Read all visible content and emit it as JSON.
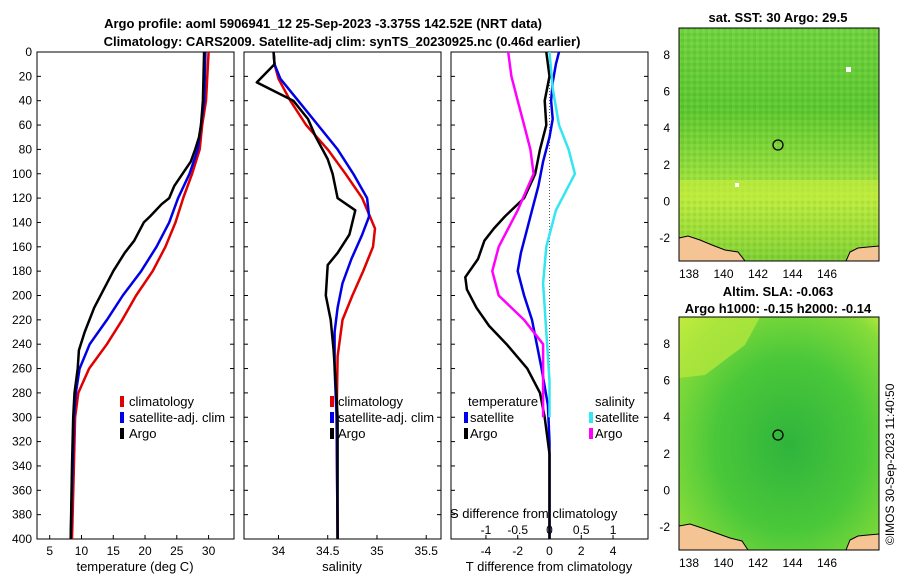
{
  "header": {
    "line1": "Argo profile: aoml 5906941_12 25-Sep-2023 -3.375S 142.52E (NRT data)",
    "line2": "Climatology: CARS2009. Satellite-adj clim: synTS_20230925.nc (0.46d earlier)"
  },
  "colors": {
    "argo": "#000000",
    "climatology": "#e00000",
    "satellite": "#0000e8",
    "sat_salinity": "#33e6f0",
    "argo_salinity": "#ff00ff",
    "land": "#f5c494"
  },
  "chart_data": [
    {
      "type": "line",
      "id": "temperature",
      "xlabel": "temperature (deg C)",
      "ylabel": "",
      "xlim": [
        3,
        34
      ],
      "ylim": [
        400,
        0
      ],
      "xticks": [
        5,
        10,
        15,
        20,
        25,
        30
      ],
      "yticks": [
        0,
        20,
        40,
        60,
        80,
        100,
        120,
        140,
        160,
        180,
        200,
        220,
        240,
        260,
        280,
        300,
        320,
        340,
        360,
        380,
        400
      ],
      "legend": [
        "climatology",
        "satellite-adj. clim",
        "Argo"
      ],
      "series": [
        {
          "name": "climatology",
          "color": "#e00000",
          "points": [
            [
              30,
              0
            ],
            [
              29.8,
              20
            ],
            [
              29.6,
              40
            ],
            [
              29,
              60
            ],
            [
              28.6,
              80
            ],
            [
              27.4,
              100
            ],
            [
              26,
              120
            ],
            [
              24.8,
              140
            ],
            [
              23.2,
              160
            ],
            [
              21.2,
              180
            ],
            [
              18.6,
              200
            ],
            [
              16.4,
              220
            ],
            [
              14,
              240
            ],
            [
              11.2,
              260
            ],
            [
              9.5,
              280
            ],
            [
              9,
              300
            ],
            [
              8.8,
              340
            ],
            [
              8.5,
              400
            ]
          ]
        },
        {
          "name": "satellite-adj. clim",
          "color": "#0000e8",
          "points": [
            [
              29.5,
              0
            ],
            [
              29.4,
              20
            ],
            [
              29.3,
              40
            ],
            [
              28.8,
              60
            ],
            [
              28.3,
              80
            ],
            [
              27,
              100
            ],
            [
              25.2,
              120
            ],
            [
              23.8,
              140
            ],
            [
              21.8,
              160
            ],
            [
              19.4,
              180
            ],
            [
              16.5,
              200
            ],
            [
              14,
              220
            ],
            [
              11.3,
              240
            ],
            [
              9.7,
              260
            ],
            [
              9.1,
              280
            ],
            [
              8.8,
              300
            ],
            [
              8.6,
              340
            ],
            [
              8.3,
              400
            ]
          ]
        },
        {
          "name": "Argo",
          "color": "#000000",
          "points": [
            [
              29.3,
              0
            ],
            [
              29.2,
              20
            ],
            [
              29.1,
              40
            ],
            [
              28.8,
              60
            ],
            [
              28.5,
              70
            ],
            [
              27.9,
              80
            ],
            [
              27.2,
              90
            ],
            [
              25.9,
              100
            ],
            [
              24.6,
              110
            ],
            [
              23.8,
              120
            ],
            [
              22.6,
              125
            ],
            [
              20.8,
              135
            ],
            [
              19.8,
              140
            ],
            [
              18.3,
              155
            ],
            [
              16.8,
              165
            ],
            [
              15,
              180
            ],
            [
              13.5,
              195
            ],
            [
              12,
              210
            ],
            [
              10.5,
              230
            ],
            [
              9.6,
              245
            ],
            [
              9.4,
              260
            ],
            [
              8.9,
              280
            ],
            [
              8.7,
              300
            ],
            [
              8.5,
              340
            ],
            [
              8.3,
              400
            ]
          ]
        }
      ]
    },
    {
      "type": "line",
      "id": "salinity",
      "xlabel": "salinity",
      "ylabel": "",
      "xlim": [
        33.65,
        35.65
      ],
      "ylim": [
        400,
        0
      ],
      "xticks": [
        "34",
        "34.5",
        "35",
        "35.5"
      ],
      "legend": [
        "climatology",
        "satellite-adj. clim",
        "Argo"
      ],
      "series": [
        {
          "name": "climatology",
          "color": "#e00000",
          "points": [
            [
              33.95,
              0
            ],
            [
              33.96,
              10
            ],
            [
              34,
              22
            ],
            [
              34.12,
              40
            ],
            [
              34.28,
              60
            ],
            [
              34.5,
              80
            ],
            [
              34.68,
              100
            ],
            [
              34.85,
              120
            ],
            [
              34.98,
              145
            ],
            [
              34.96,
              160
            ],
            [
              34.86,
              180
            ],
            [
              34.75,
              200
            ],
            [
              34.65,
              220
            ],
            [
              34.6,
              250
            ],
            [
              34.59,
              300
            ],
            [
              34.6,
              400
            ]
          ]
        },
        {
          "name": "satellite-adj. clim",
          "color": "#0000e8",
          "points": [
            [
              33.95,
              0
            ],
            [
              33.96,
              10
            ],
            [
              34.02,
              22
            ],
            [
              34.2,
              40
            ],
            [
              34.4,
              60
            ],
            [
              34.6,
              80
            ],
            [
              34.76,
              100
            ],
            [
              34.9,
              120
            ],
            [
              34.92,
              135
            ],
            [
              34.85,
              150
            ],
            [
              34.74,
              170
            ],
            [
              34.65,
              190
            ],
            [
              34.6,
              210
            ],
            [
              34.57,
              230
            ],
            [
              34.57,
              260
            ],
            [
              34.59,
              300
            ],
            [
              34.6,
              400
            ]
          ]
        },
        {
          "name": "Argo",
          "color": "#000000",
          "points": [
            [
              33.95,
              0
            ],
            [
              33.96,
              10
            ],
            [
              33.78,
              25
            ],
            [
              34.15,
              40
            ],
            [
              34.3,
              55
            ],
            [
              34.38,
              70
            ],
            [
              34.5,
              88
            ],
            [
              34.55,
              100
            ],
            [
              34.6,
              120
            ],
            [
              34.78,
              130
            ],
            [
              34.72,
              150
            ],
            [
              34.6,
              165
            ],
            [
              34.5,
              175
            ],
            [
              34.48,
              200
            ],
            [
              34.53,
              220
            ],
            [
              34.56,
              245
            ],
            [
              34.58,
              270
            ],
            [
              34.6,
              300
            ],
            [
              34.6,
              400
            ]
          ]
        }
      ]
    },
    {
      "type": "line",
      "id": "difference",
      "xlabel": "T difference from climatology",
      "top_xlabel": "S difference from climatology",
      "xlim": [
        -6.2,
        6.2
      ],
      "ylim": [
        400,
        0
      ],
      "xticks": [
        "-4",
        "-2",
        "0",
        "2",
        "4"
      ],
      "top_xticks": [
        "-1",
        "-0.5",
        "0",
        "0.5",
        "1"
      ],
      "legend_titles": [
        "temperature",
        "salinity"
      ],
      "legend": [
        "satellite",
        "Argo",
        "satellite",
        "Argo"
      ],
      "series": [
        {
          "name": "satellite",
          "group": "temperature",
          "color": "#0000e8",
          "points": [
            [
              0.6,
              0
            ],
            [
              0.4,
              10
            ],
            [
              0.2,
              25
            ],
            [
              0.1,
              40
            ],
            [
              0.2,
              55
            ],
            [
              0,
              70
            ],
            [
              -0.4,
              90
            ],
            [
              -0.7,
              110
            ],
            [
              -1.1,
              130
            ],
            [
              -1.5,
              150
            ],
            [
              -1.8,
              165
            ],
            [
              -2,
              180
            ],
            [
              -1.6,
              200
            ],
            [
              -1.1,
              220
            ],
            [
              -0.8,
              240
            ],
            [
              -0.5,
              260
            ],
            [
              -0.1,
              290
            ],
            [
              0,
              320
            ],
            [
              0,
              400
            ]
          ]
        },
        {
          "name": "Argo",
          "group": "temperature",
          "color": "#000000",
          "points": [
            [
              -0.2,
              0
            ],
            [
              0,
              20
            ],
            [
              -0.3,
              40
            ],
            [
              -0.2,
              60
            ],
            [
              -0.6,
              80
            ],
            [
              -0.9,
              100
            ],
            [
              -1.6,
              120
            ],
            [
              -2.8,
              135
            ],
            [
              -3.5,
              145
            ],
            [
              -4.1,
              155
            ],
            [
              -4.5,
              170
            ],
            [
              -5.3,
              185
            ],
            [
              -5.2,
              195
            ],
            [
              -4.6,
              210
            ],
            [
              -3.8,
              225
            ],
            [
              -2.7,
              240
            ],
            [
              -1.4,
              260
            ],
            [
              -0.6,
              280
            ],
            [
              -0.3,
              300
            ],
            [
              0,
              330
            ],
            [
              0,
              400
            ]
          ]
        },
        {
          "name": "satellite",
          "group": "salinity",
          "color": "#33e6f0",
          "points": [
            [
              0,
              0
            ],
            [
              0.05,
              30
            ],
            [
              0.15,
              60
            ],
            [
              0.3,
              80
            ],
            [
              0.4,
              100
            ],
            [
              0.1,
              130
            ],
            [
              -0.05,
              160
            ],
            [
              -0.1,
              190
            ],
            [
              -0.05,
              230
            ],
            [
              0,
              270
            ],
            [
              0,
              300
            ]
          ]
        },
        {
          "name": "Argo",
          "group": "salinity",
          "color": "#ff00ff",
          "points": [
            [
              -0.65,
              0
            ],
            [
              -0.6,
              20
            ],
            [
              -0.5,
              40
            ],
            [
              -0.4,
              60
            ],
            [
              -0.3,
              80
            ],
            [
              -0.25,
              100
            ],
            [
              -0.5,
              130
            ],
            [
              -0.8,
              160
            ],
            [
              -0.9,
              180
            ],
            [
              -0.8,
              200
            ],
            [
              -0.4,
              220
            ],
            [
              -0.1,
              240
            ],
            [
              -0.1,
              300
            ]
          ]
        }
      ]
    }
  ],
  "maps": {
    "sst": {
      "title": "sat. SST: 30 Argo: 29.5",
      "yticks": [
        "8",
        "6",
        "4",
        "2",
        "0",
        "-2"
      ],
      "xticks": [
        "138",
        "140",
        "142",
        "144",
        "146"
      ]
    },
    "sla": {
      "title_line1": "Altim. SLA: -0.063",
      "title_line2": "Argo h1000: -0.15 h2000: -0.14",
      "yticks": [
        "8",
        "6",
        "4",
        "2",
        "0",
        "-2"
      ],
      "xticks": [
        "138",
        "140",
        "142",
        "144",
        "146"
      ]
    }
  },
  "credit": "©IMOS 30-Sep-2023 11:40:50"
}
